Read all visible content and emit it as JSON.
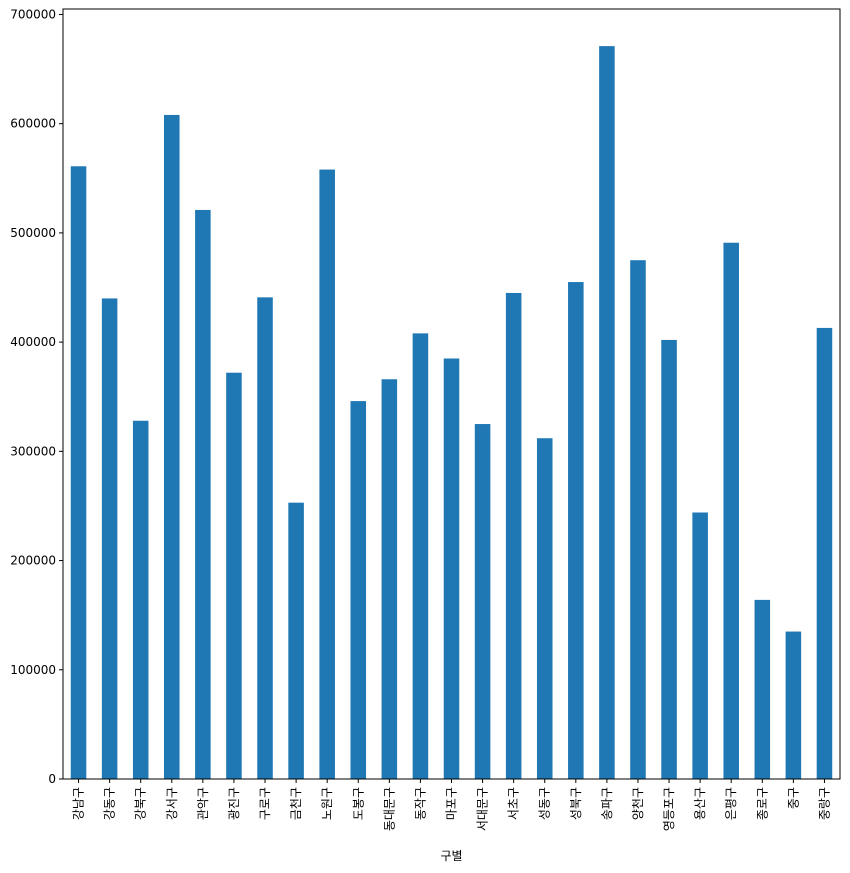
{
  "chart_data": {
    "type": "bar",
    "xlabel": "구별",
    "ylabel": "",
    "title": "",
    "categories": [
      "강남구",
      "강동구",
      "강북구",
      "강서구",
      "관악구",
      "광진구",
      "구로구",
      "금천구",
      "노원구",
      "도봉구",
      "동대문구",
      "동작구",
      "마포구",
      "서대문구",
      "서초구",
      "성동구",
      "성북구",
      "송파구",
      "양천구",
      "영등포구",
      "용산구",
      "은평구",
      "종로구",
      "중구",
      "중랑구"
    ],
    "values": [
      561000,
      440000,
      328000,
      608000,
      521000,
      372000,
      441000,
      253000,
      558000,
      346000,
      366000,
      408000,
      385000,
      325000,
      445000,
      312000,
      455000,
      671000,
      475000,
      402000,
      244000,
      491000,
      164000,
      135000,
      413000
    ],
    "ylim": [
      0,
      705000
    ],
    "yticks": [
      0,
      100000,
      200000,
      300000,
      400000,
      500000,
      600000,
      700000
    ],
    "bar_color": "#1f77b4",
    "grid": false,
    "legend": "none"
  }
}
